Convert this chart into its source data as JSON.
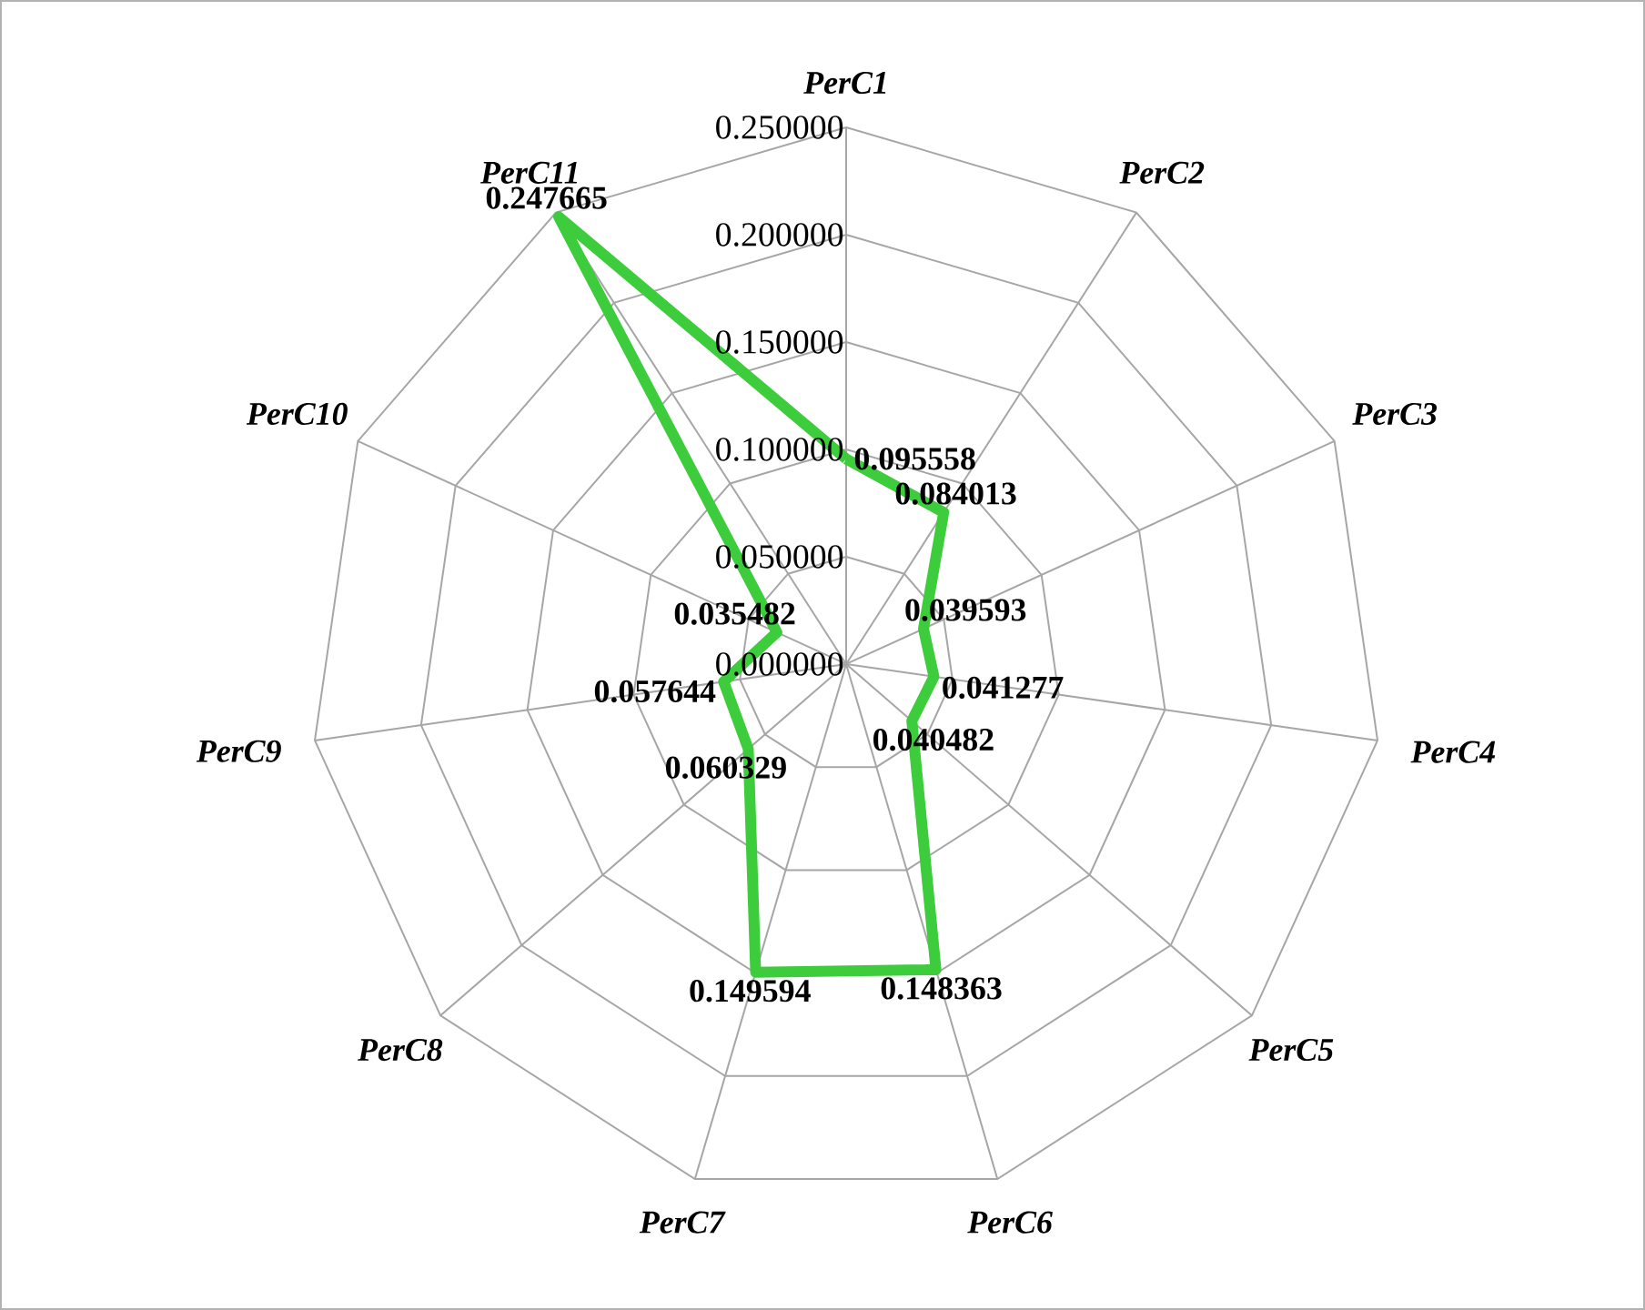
{
  "chart_data": {
    "type": "radar",
    "categories": [
      "PerC1",
      "PerC2",
      "PerC3",
      "PerC4",
      "PerC5",
      "PerC6",
      "PerC7",
      "PerC8",
      "PerC9",
      "PerC10",
      "PerC11"
    ],
    "series": [
      {
        "color": "#3ccc3c",
        "values": [
          0.095558,
          0.084013,
          0.039593,
          0.041277,
          0.040482,
          0.148363,
          0.149594,
          0.060329,
          0.057644,
          0.035482,
          0.247665
        ]
      }
    ],
    "ylim": [
      0,
      0.25
    ],
    "yticks": [
      {
        "value": 0,
        "label": "0.000000"
      },
      {
        "value": 0.05,
        "label": "0.050000"
      },
      {
        "value": 0.1,
        "label": "0.100000"
      },
      {
        "value": 0.15,
        "label": "0.150000"
      },
      {
        "value": 0.2,
        "label": "0.200000"
      },
      {
        "value": 0.25,
        "label": "0.250000"
      }
    ],
    "grid": true,
    "data_labels": true
  }
}
